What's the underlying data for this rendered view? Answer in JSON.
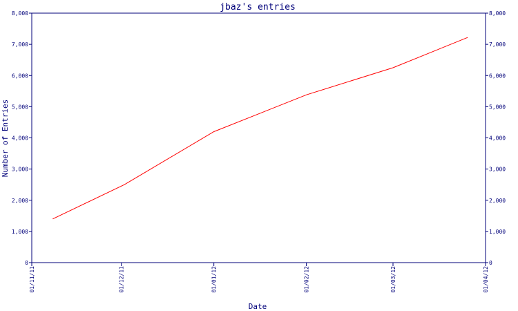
{
  "chart_data": {
    "type": "line",
    "title": "jbaz's entries",
    "xlabel": "Date",
    "ylabel": "Number of Entries",
    "x_ticks": [
      "01/11/11",
      "01/12/11",
      "01/01/12",
      "01/02/12",
      "01/03/12",
      "01/04/12"
    ],
    "y_ticks": [
      "0",
      "1,000",
      "2,000",
      "3,000",
      "4,000",
      "5,000",
      "6,000",
      "7,000",
      "8,000"
    ],
    "ylim": [
      0,
      8000
    ],
    "xlim": [
      "2011-11-01",
      "2012-04-01"
    ],
    "grid": false,
    "y_axis_mirrored_right": true,
    "series": [
      {
        "color": "#ff0000",
        "x": [
          "2011-11-08",
          "2011-12-02",
          "2012-01-01",
          "2012-02-01",
          "2012-03-01",
          "2012-03-26"
        ],
        "y": [
          1400,
          2500,
          4200,
          5380,
          6250,
          7220
        ]
      }
    ]
  }
}
